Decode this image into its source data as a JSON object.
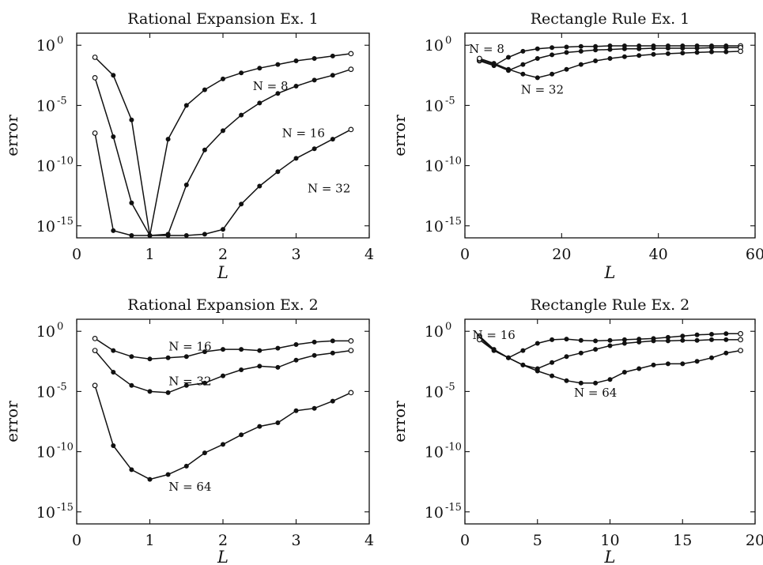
{
  "chart_data": [
    {
      "type": "line",
      "title": "Rational Expansion  Ex. 1",
      "xlabel": "L",
      "ylabel": "error",
      "yscale": "log",
      "xlim": [
        0,
        4
      ],
      "ylim_exponent": [
        -16,
        1
      ],
      "xticks": [
        "0",
        "1",
        "2",
        "3",
        "4"
      ],
      "yticks": [
        {
          "base": "10",
          "exp": "0"
        },
        {
          "base": "10",
          "exp": "-5"
        },
        {
          "base": "10",
          "exp": "-10"
        },
        {
          "base": "10",
          "exp": "-15"
        }
      ],
      "x": [
        0.25,
        0.5,
        0.75,
        1.0,
        1.25,
        1.5,
        1.75,
        2.0,
        2.25,
        2.5,
        2.75,
        3.0,
        3.25,
        3.5,
        3.75
      ],
      "series": [
        {
          "name": "N = 8",
          "log10_values": [
            -1.0,
            -2.5,
            -6.2,
            -15.8,
            -7.8,
            -5.0,
            -3.7,
            -2.8,
            -2.3,
            -1.9,
            -1.6,
            -1.3,
            -1.1,
            -0.9,
            -0.7
          ]
        },
        {
          "name": "N = 16",
          "log10_values": [
            -2.7,
            -7.6,
            -13.1,
            -15.8,
            -15.7,
            -11.6,
            -8.7,
            -7.1,
            -5.8,
            -4.8,
            -4.0,
            -3.4,
            -2.9,
            -2.5,
            -2.0
          ]
        },
        {
          "name": "N = 32",
          "log10_values": [
            -7.3,
            -15.4,
            -15.8,
            -15.8,
            -15.8,
            -15.8,
            -15.7,
            -15.3,
            -13.2,
            -11.7,
            -10.5,
            -9.4,
            -8.6,
            -7.8,
            -7.0
          ]
        }
      ],
      "annotations": [
        {
          "text": "N = 8",
          "x": 2.65,
          "log10_y": -3.4
        },
        {
          "text": "N = 16",
          "x": 3.1,
          "log10_y": -7.3
        },
        {
          "text": "N = 32",
          "x": 3.45,
          "log10_y": -11.9
        }
      ]
    },
    {
      "type": "line",
      "title": "Rectangle Rule Ex. 1",
      "xlabel": "L",
      "ylabel": "error",
      "yscale": "log",
      "xlim": [
        0,
        60
      ],
      "ylim_exponent": [
        -16,
        1
      ],
      "xticks": [
        "0",
        "20",
        "40",
        "60"
      ],
      "yticks": [
        {
          "base": "10",
          "exp": "0"
        },
        {
          "base": "10",
          "exp": "-5"
        },
        {
          "base": "10",
          "exp": "-10"
        },
        {
          "base": "10",
          "exp": "-15"
        }
      ],
      "x": [
        3,
        6,
        9,
        12,
        15,
        18,
        21,
        24,
        27,
        30,
        33,
        36,
        39,
        42,
        45,
        48,
        51,
        54,
        57
      ],
      "series": [
        {
          "name": "N = 8",
          "log10_values": [
            -1.3,
            -1.7,
            -1.0,
            -0.5,
            -0.3,
            -0.2,
            -0.15,
            -0.1,
            -0.1,
            -0.05,
            -0.05,
            -0.05,
            -0.05,
            -0.05,
            -0.05,
            -0.05,
            -0.05,
            -0.05,
            -0.05
          ]
        },
        {
          "name": "",
          "log10_values": [
            -1.2,
            -1.6,
            -2.1,
            -1.6,
            -1.1,
            -0.8,
            -0.6,
            -0.5,
            -0.4,
            -0.35,
            -0.3,
            -0.3,
            -0.25,
            -0.25,
            -0.25,
            -0.25,
            -0.2,
            -0.2,
            -0.2
          ]
        },
        {
          "name": "N = 32",
          "log10_values": [
            -1.1,
            -1.5,
            -2.0,
            -2.4,
            -2.7,
            -2.4,
            -2.0,
            -1.6,
            -1.3,
            -1.1,
            -0.95,
            -0.85,
            -0.75,
            -0.7,
            -0.65,
            -0.6,
            -0.55,
            -0.55,
            -0.5
          ]
        }
      ],
      "annotations": [
        {
          "text": "N = 8",
          "x": 4.5,
          "log10_y": -0.3
        },
        {
          "text": "N = 32",
          "x": 16,
          "log10_y": -3.7
        }
      ]
    },
    {
      "type": "line",
      "title": "Rational Expansion  Ex. 2",
      "xlabel": "L",
      "ylabel": "error",
      "yscale": "log",
      "xlim": [
        0,
        4
      ],
      "ylim_exponent": [
        -16,
        1
      ],
      "xticks": [
        "0",
        "1",
        "2",
        "3",
        "4"
      ],
      "yticks": [
        {
          "base": "10",
          "exp": "0"
        },
        {
          "base": "10",
          "exp": "-5"
        },
        {
          "base": "10",
          "exp": "-10"
        },
        {
          "base": "10",
          "exp": "-15"
        }
      ],
      "x": [
        0.25,
        0.5,
        0.75,
        1.0,
        1.25,
        1.5,
        1.75,
        2.0,
        2.25,
        2.5,
        2.75,
        3.0,
        3.25,
        3.5,
        3.75
      ],
      "series": [
        {
          "name": "N = 16",
          "log10_values": [
            -0.6,
            -1.6,
            -2.1,
            -2.3,
            -2.2,
            -2.1,
            -1.7,
            -1.5,
            -1.5,
            -1.6,
            -1.4,
            -1.1,
            -0.9,
            -0.8,
            -0.8
          ]
        },
        {
          "name": "N = 32",
          "log10_values": [
            -1.6,
            -3.4,
            -4.5,
            -5.0,
            -5.1,
            -4.5,
            -4.3,
            -3.7,
            -3.2,
            -2.9,
            -3.0,
            -2.4,
            -2.0,
            -1.8,
            -1.6
          ]
        },
        {
          "name": "N = 64",
          "log10_values": [
            -4.5,
            -9.5,
            -11.5,
            -12.3,
            -11.9,
            -11.2,
            -10.1,
            -9.4,
            -8.6,
            -7.9,
            -7.6,
            -6.6,
            -6.4,
            -5.8,
            -5.1
          ]
        }
      ],
      "annotations": [
        {
          "text": "N = 16",
          "x": 1.55,
          "log10_y": -1.25
        },
        {
          "text": "N = 32",
          "x": 1.55,
          "log10_y": -4.15
        },
        {
          "text": "N = 64",
          "x": 1.55,
          "log10_y": -12.9
        }
      ]
    },
    {
      "type": "line",
      "title": "Rectangle Rule Ex. 2",
      "xlabel": "L",
      "ylabel": "error",
      "yscale": "log",
      "xlim": [
        0,
        20
      ],
      "ylim_exponent": [
        -16,
        1
      ],
      "xticks": [
        "0",
        "5",
        "10",
        "15",
        "20"
      ],
      "yticks": [
        {
          "base": "10",
          "exp": "0"
        },
        {
          "base": "10",
          "exp": "-5"
        },
        {
          "base": "10",
          "exp": "-10"
        },
        {
          "base": "10",
          "exp": "-15"
        }
      ],
      "x": [
        1,
        2,
        3,
        4,
        5,
        6,
        7,
        8,
        9,
        10,
        11,
        12,
        13,
        14,
        15,
        16,
        17,
        18,
        19
      ],
      "series": [
        {
          "name": "N = 16",
          "log10_values": [
            -0.4,
            -1.5,
            -2.2,
            -1.6,
            -1.0,
            -0.7,
            -0.65,
            -0.75,
            -0.8,
            -0.75,
            -0.7,
            -0.65,
            -0.6,
            -0.5,
            -0.4,
            -0.3,
            -0.25,
            -0.2,
            -0.2
          ]
        },
        {
          "name": "",
          "log10_values": [
            -0.5,
            -1.6,
            -2.2,
            -2.8,
            -3.1,
            -2.6,
            -2.1,
            -1.8,
            -1.5,
            -1.2,
            -1.0,
            -0.9,
            -0.8,
            -0.8,
            -0.75,
            -0.75,
            -0.7,
            -0.7,
            -0.7
          ]
        },
        {
          "name": "N = 64",
          "log10_values": [
            -0.7,
            -1.6,
            -2.2,
            -2.8,
            -3.3,
            -3.7,
            -4.1,
            -4.3,
            -4.3,
            -4.0,
            -3.4,
            -3.1,
            -2.8,
            -2.7,
            -2.7,
            -2.5,
            -2.2,
            -1.8,
            -1.6
          ]
        }
      ],
      "annotations": [
        {
          "text": "N = 16",
          "x": 2.0,
          "log10_y": -0.3
        },
        {
          "text": "N = 64",
          "x": 9.0,
          "log10_y": -5.1
        }
      ]
    }
  ]
}
